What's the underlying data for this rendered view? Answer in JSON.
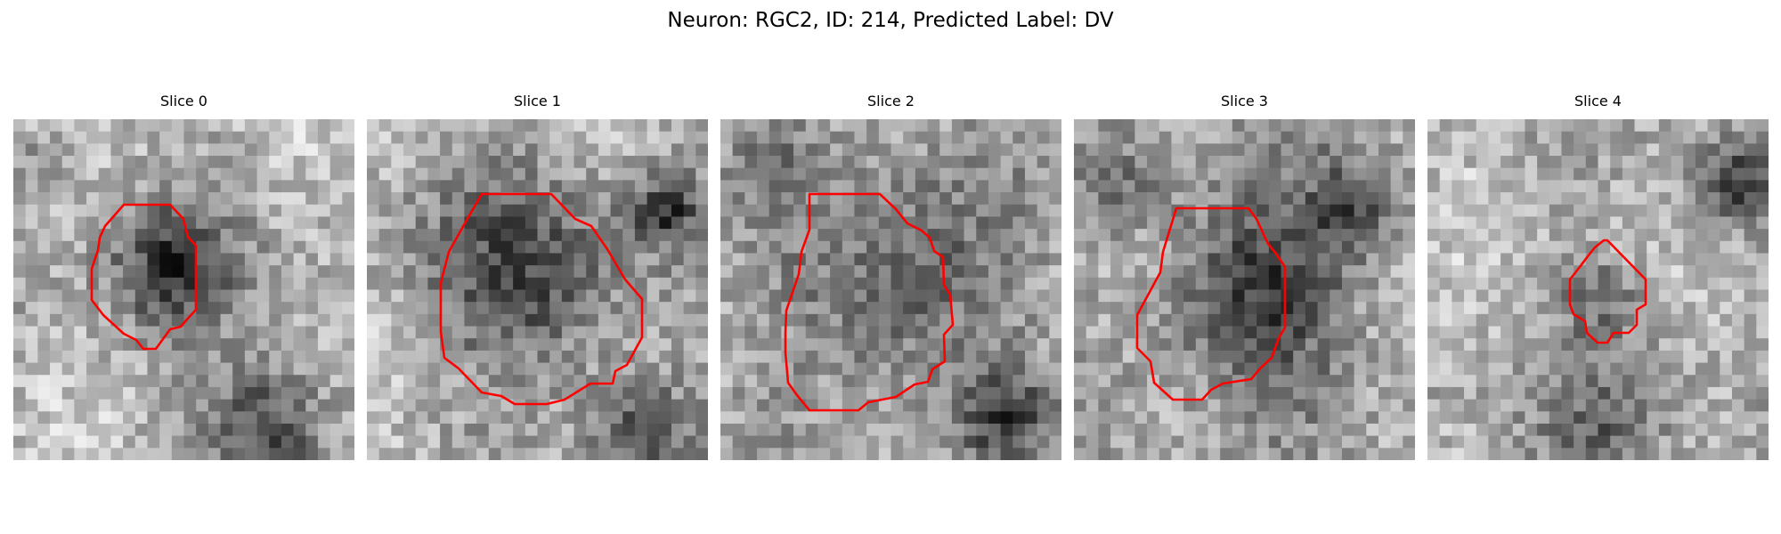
{
  "figure": {
    "title": "Neuron: RGC2, ID: 214, Predicted Label: DV"
  },
  "colors": {
    "outline": "#ff0000",
    "background": "#ffffff"
  },
  "panels": [
    {
      "title": "Slice 0"
    },
    {
      "title": "Slice 1"
    },
    {
      "title": "Slice 2"
    },
    {
      "title": "Slice 3"
    },
    {
      "title": "Slice 4"
    }
  ]
}
